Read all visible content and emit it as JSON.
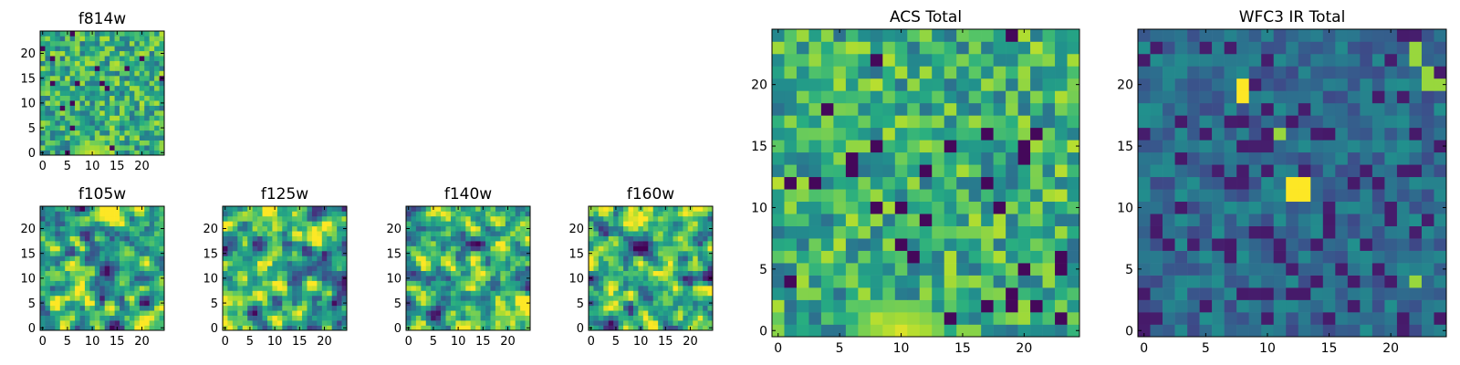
{
  "chart_data": [
    {
      "type": "heatmap",
      "title": "f814w",
      "grid": [
        25,
        25
      ],
      "xlim": [
        0,
        25
      ],
      "ylim": [
        0,
        25
      ],
      "xticks": [
        0,
        5,
        10,
        15,
        20
      ],
      "yticks": [
        0,
        5,
        10,
        15,
        20
      ],
      "colormap": "viridis",
      "seed": 814,
      "bias": "bottom-center",
      "smooth": 0,
      "grid_on": false
    },
    {
      "type": "heatmap",
      "title": "f105w",
      "grid": [
        25,
        25
      ],
      "xlim": [
        0,
        25
      ],
      "ylim": [
        0,
        25
      ],
      "xticks": [
        0,
        5,
        10,
        15,
        20
      ],
      "yticks": [
        0,
        5,
        10,
        15,
        20
      ],
      "colormap": "viridis",
      "seed": 105,
      "bias": "none",
      "smooth": 1,
      "grid_on": false
    },
    {
      "type": "heatmap",
      "title": "f125w",
      "grid": [
        25,
        25
      ],
      "xlim": [
        0,
        25
      ],
      "ylim": [
        0,
        25
      ],
      "xticks": [
        0,
        5,
        10,
        15,
        20
      ],
      "yticks": [
        0,
        5,
        10,
        15,
        20
      ],
      "colormap": "viridis",
      "seed": 125,
      "bias": "none",
      "smooth": 1,
      "grid_on": false
    },
    {
      "type": "heatmap",
      "title": "f140w",
      "grid": [
        25,
        25
      ],
      "xlim": [
        0,
        25
      ],
      "ylim": [
        0,
        25
      ],
      "xticks": [
        0,
        5,
        10,
        15,
        20
      ],
      "yticks": [
        0,
        5,
        10,
        15,
        20
      ],
      "colormap": "viridis",
      "seed": 140,
      "bias": "none",
      "smooth": 1,
      "grid_on": false
    },
    {
      "type": "heatmap",
      "title": "f160w",
      "grid": [
        25,
        25
      ],
      "xlim": [
        0,
        25
      ],
      "ylim": [
        0,
        25
      ],
      "xticks": [
        0,
        5,
        10,
        15,
        20
      ],
      "yticks": [
        0,
        5,
        10,
        15,
        20
      ],
      "colormap": "viridis",
      "seed": 160,
      "bias": "none",
      "smooth": 1,
      "grid_on": false
    },
    {
      "type": "heatmap",
      "title": "ACS Total",
      "grid": [
        25,
        25
      ],
      "xlim": [
        0,
        25
      ],
      "ylim": [
        0,
        25
      ],
      "xticks": [
        0,
        5,
        10,
        15,
        20
      ],
      "yticks": [
        0,
        5,
        10,
        15,
        20
      ],
      "colormap": "viridis",
      "seed": 901,
      "bias": "bottom-center",
      "smooth": 0,
      "grid_on": false
    },
    {
      "type": "heatmap",
      "title": "WFC3 IR Total",
      "grid": [
        25,
        25
      ],
      "xlim": [
        0,
        25
      ],
      "ylim": [
        0,
        25
      ],
      "xticks": [
        0,
        5,
        10,
        15,
        20
      ],
      "yticks": [
        0,
        5,
        10,
        15,
        20
      ],
      "colormap": "viridis",
      "seed": 333,
      "bias": "dark",
      "smooth": 0,
      "grid_on": false
    }
  ]
}
